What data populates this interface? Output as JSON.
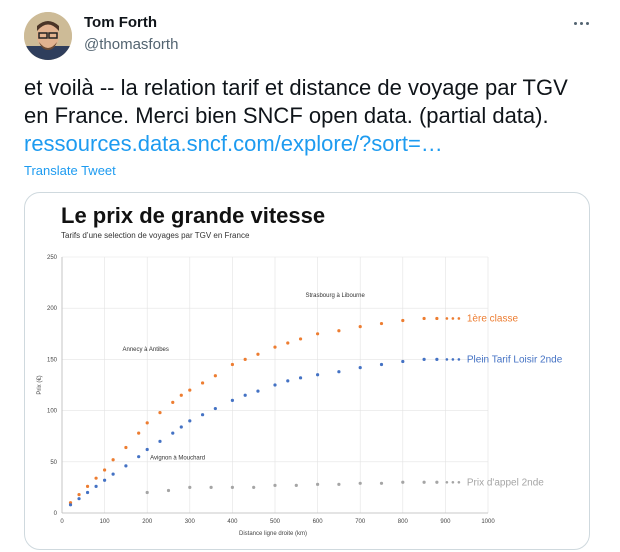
{
  "tweet": {
    "author_name": "Tom Forth",
    "author_handle": "@thomasforth",
    "text": "et voilà -- la relation tarif et distance de voyage par TGV en France. Merci bien SNCF open data. (partial data). ",
    "link_text": "ressources.data.sncf.com/explore/?sort=…",
    "translate_label": "Translate Tweet",
    "more_icon": "more-dots-icon"
  },
  "chart_data": {
    "type": "scatter",
    "title": "Le prix de grande vitesse",
    "subtitle": "Tarifs d’une selection de voyages par TGV en France",
    "xlabel": "Distance ligne droite (km)",
    "ylabel": "Prix (€)",
    "xlim": [
      0,
      1000
    ],
    "ylim": [
      0,
      250
    ],
    "xticks": [
      0,
      100,
      200,
      300,
      400,
      500,
      600,
      700,
      800,
      900,
      1000
    ],
    "yticks": [
      0,
      50,
      100,
      150,
      200,
      250
    ],
    "grid": true,
    "series": [
      {
        "name": "1ère classe",
        "color": "#ed7d31",
        "x": [
          20,
          40,
          60,
          80,
          100,
          120,
          150,
          180,
          200,
          230,
          260,
          280,
          300,
          330,
          360,
          400,
          430,
          460,
          500,
          530,
          560,
          600,
          650,
          700,
          750,
          800,
          850,
          880
        ],
        "y": [
          10,
          18,
          26,
          34,
          42,
          52,
          64,
          78,
          88,
          98,
          108,
          115,
          120,
          127,
          134,
          145,
          150,
          155,
          162,
          166,
          170,
          175,
          178,
          182,
          185,
          188,
          190,
          190
        ]
      },
      {
        "name": "Plein Tarif Loisir 2nde",
        "color": "#4472c4",
        "x": [
          20,
          40,
          60,
          80,
          100,
          120,
          150,
          180,
          200,
          230,
          260,
          280,
          300,
          330,
          360,
          400,
          430,
          460,
          500,
          530,
          560,
          600,
          650,
          700,
          750,
          800,
          850,
          880
        ],
        "y": [
          8,
          14,
          20,
          26,
          32,
          38,
          46,
          55,
          62,
          70,
          78,
          84,
          90,
          96,
          102,
          110,
          115,
          119,
          125,
          129,
          132,
          135,
          138,
          142,
          145,
          148,
          150,
          150
        ]
      },
      {
        "name": "Prix d'appel 2nde",
        "color": "#a5a5a5",
        "x": [
          200,
          250,
          300,
          350,
          400,
          450,
          500,
          550,
          600,
          650,
          700,
          750,
          800,
          850,
          880
        ],
        "y": [
          20,
          22,
          25,
          25,
          25,
          25,
          27,
          27,
          28,
          28,
          29,
          29,
          30,
          30,
          30
        ]
      }
    ],
    "annotations": [
      {
        "text": "Strasbourg à Libourne",
        "x": 725,
        "y": 213
      },
      {
        "text": "Annecy à Antibes",
        "x": 265,
        "y": 160
      },
      {
        "text": "Avignon à Mouchard",
        "x": 350,
        "y": 54
      }
    ]
  }
}
